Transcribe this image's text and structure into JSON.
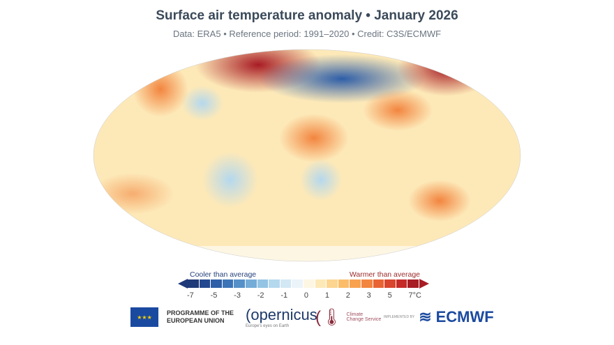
{
  "title": "Surface air temperature anomaly • January 2026",
  "subtitle": "Data: ERA5 • Reference period: 1991–2020 • Credit: C3S/ECMWF",
  "legend": {
    "cooler_label": "Cooler than average",
    "warmer_label": "Warmer than average",
    "ticks": [
      "-7",
      "-5",
      "-3",
      "-2",
      "-1",
      "0",
      "1",
      "2",
      "3",
      "5",
      "7°C"
    ],
    "colors": [
      "#1f3a78",
      "#23488f",
      "#2e5ea8",
      "#3d74b8",
      "#5590c8",
      "#74acd8",
      "#93c4e4",
      "#b4d8ee",
      "#d2e8f4",
      "#ebf4f9",
      "#fdf6e3",
      "#fde9b8",
      "#fcd590",
      "#fbbd6a",
      "#f8a250",
      "#f2853f",
      "#e86434",
      "#d9452d",
      "#c52a28",
      "#a81c24"
    ]
  },
  "logos": {
    "eu": "PROGRAMME OF THE EUROPEAN UNION",
    "copernicus": "opernicus",
    "copernicus_tagline": "Europe's eyes on Earth",
    "c3s": "Climate Change Service",
    "implemented_by": "IMPLEMENTED BY",
    "ecmwf": "ECMWF"
  }
}
